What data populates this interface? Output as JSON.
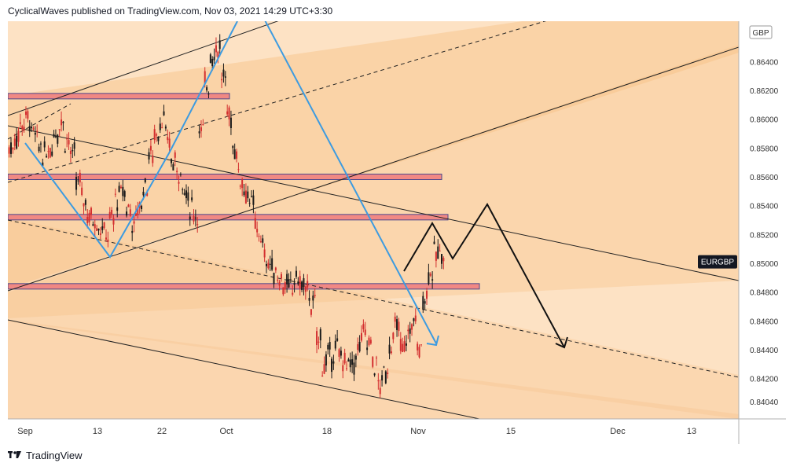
{
  "header": {
    "text": "CyclicalWaves published on TradingView.com, Nov 03, 2021 14:29 UTC+3:30"
  },
  "footer": {
    "brand": "TradingView",
    "logo_icon": "tradingview-logo-icon"
  },
  "colors": {
    "background": "#fde2c4",
    "zone": "#f8c690",
    "candle_up": "#1a1a1a",
    "candle_down": "#d32f2f",
    "support_box": "#f08080",
    "box_border": "#3a3a8a",
    "wave_line": "#3d9be0",
    "projection": "#111111"
  },
  "chart_data": {
    "type": "candlestick",
    "symbol": "EURGBP",
    "currency": "GBP",
    "x_ticks": [
      "Sep",
      "13",
      "22",
      "Oct",
      "18",
      "Nov",
      "15",
      "Dec",
      "13"
    ],
    "y_ticks": [
      "0.86400",
      "0.86200",
      "0.86000",
      "0.85800",
      "0.85600",
      "0.85400",
      "0.85200",
      "0.85000",
      "0.84800",
      "0.84600",
      "0.84400",
      "0.84200",
      "0.84040"
    ],
    "ylim": [
      0.8392,
      0.8668
    ],
    "last_price": 0.8501,
    "series": [
      {
        "name": "EURGBP",
        "points": [
          [
            0,
            0.858
          ],
          [
            1,
            0.8588
          ],
          [
            2,
            0.8598
          ],
          [
            3,
            0.8601
          ],
          [
            4,
            0.859
          ],
          [
            5,
            0.8582
          ],
          [
            6,
            0.8575
          ],
          [
            7,
            0.858
          ],
          [
            8,
            0.8592
          ],
          [
            9,
            0.8598
          ],
          [
            10,
            0.8586
          ],
          [
            11,
            0.8574
          ],
          [
            12,
            0.8556
          ],
          [
            13,
            0.8545
          ],
          [
            14,
            0.8533
          ],
          [
            15,
            0.853
          ],
          [
            16,
            0.8525
          ],
          [
            17,
            0.852
          ],
          [
            18,
            0.853
          ],
          [
            19,
            0.8545
          ],
          [
            20,
            0.855
          ],
          [
            21,
            0.8538
          ],
          [
            22,
            0.8528
          ],
          [
            23,
            0.854
          ],
          [
            24,
            0.8555
          ],
          [
            25,
            0.8575
          ],
          [
            26,
            0.859
          ],
          [
            27,
            0.86
          ],
          [
            28,
            0.8585
          ],
          [
            29,
            0.857
          ],
          [
            30,
            0.8565
          ],
          [
            31,
            0.855
          ],
          [
            32,
            0.854
          ],
          [
            33,
            0.8535
          ],
          [
            34,
            0.859
          ],
          [
            35,
            0.8625
          ],
          [
            36,
            0.8645
          ],
          [
            37,
            0.865
          ],
          [
            38,
            0.8628
          ],
          [
            39,
            0.8602
          ],
          [
            40,
            0.858
          ],
          [
            41,
            0.856
          ],
          [
            42,
            0.855
          ],
          [
            43,
            0.854
          ],
          [
            44,
            0.8525
          ],
          [
            45,
            0.851
          ],
          [
            46,
            0.85
          ],
          [
            47,
            0.8495
          ],
          [
            48,
            0.849
          ],
          [
            49,
            0.8485
          ],
          [
            50,
            0.8482
          ],
          [
            51,
            0.849
          ],
          [
            52,
            0.8485
          ],
          [
            53,
            0.848
          ],
          [
            54,
            0.847
          ],
          [
            55,
            0.8448
          ],
          [
            56,
            0.843
          ],
          [
            57,
            0.8435
          ],
          [
            58,
            0.844
          ],
          [
            59,
            0.8435
          ],
          [
            60,
            0.843
          ],
          [
            61,
            0.8428
          ],
          [
            62,
            0.844
          ],
          [
            63,
            0.845
          ],
          [
            64,
            0.8445
          ],
          [
            65,
            0.843
          ],
          [
            66,
            0.8415
          ],
          [
            67,
            0.8425
          ],
          [
            68,
            0.8445
          ],
          [
            69,
            0.8455
          ],
          [
            70,
            0.844
          ],
          [
            71,
            0.845
          ],
          [
            72,
            0.846
          ],
          [
            73,
            0.844
          ],
          [
            74,
            0.8478
          ],
          [
            75,
            0.8495
          ],
          [
            76,
            0.8505
          ],
          [
            77,
            0.8508
          ]
        ]
      }
    ],
    "horizontal_zones": [
      {
        "price": 0.8616
      },
      {
        "price": 0.856
      },
      {
        "price": 0.8532
      },
      {
        "price": 0.8484
      }
    ],
    "annotations": [
      {
        "type": "blue-wave-line"
      },
      {
        "type": "black-projection-path"
      },
      {
        "type": "parallel-channels"
      }
    ]
  }
}
